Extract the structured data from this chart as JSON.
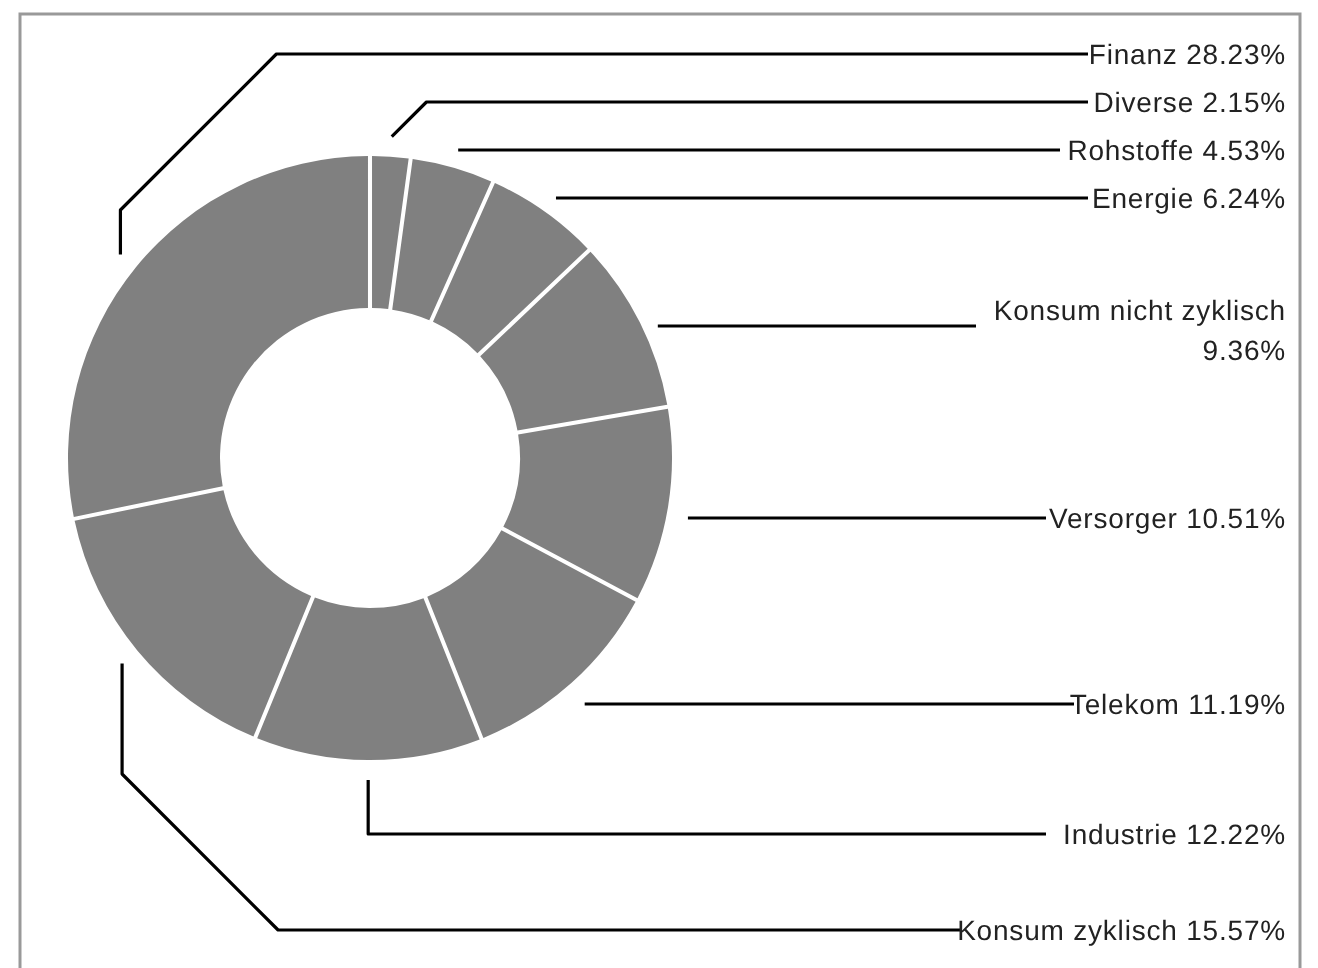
{
  "chart_data": {
    "type": "donut",
    "categories": [
      "Diverse",
      "Rohstoffe",
      "Energie",
      "Konsum nicht zyklisch",
      "Versorger",
      "Telekom",
      "Industrie",
      "Konsum zyklisch",
      "Finanz"
    ],
    "values": [
      2.15,
      4.53,
      6.24,
      9.36,
      10.51,
      11.19,
      12.22,
      15.57,
      28.23
    ],
    "colors": [
      "#808080",
      "#808080",
      "#808080",
      "#808080",
      "#808080",
      "#808080",
      "#808080",
      "#808080",
      "#808080"
    ],
    "value_labels": [
      "2.15%",
      "4.53%",
      "6.24%",
      "9.36%",
      "10.51%",
      "11.19%",
      "12.22%",
      "15.57%",
      "28.23%"
    ]
  }
}
